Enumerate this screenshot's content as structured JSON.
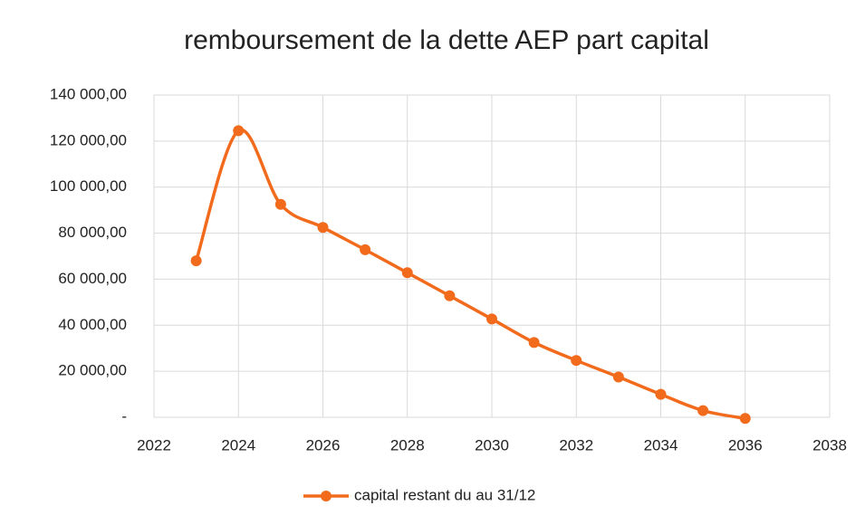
{
  "chart_data": {
    "type": "line",
    "title": "remboursement de la dette AEP part capital",
    "x": [
      2023,
      2024,
      2025,
      2026,
      2027,
      2028,
      2029,
      2030,
      2031,
      2032,
      2033,
      2034,
      2035,
      2036
    ],
    "series": [
      {
        "name": "capital restant du au 31/12",
        "color": "#f26b1d",
        "values": [
          68000,
          124500,
          92500,
          82500,
          72800,
          62800,
          52800,
          42700,
          32500,
          24700,
          17500,
          10000,
          2900,
          -500
        ]
      }
    ],
    "xlim": [
      2022,
      2038
    ],
    "xticks": [
      2022,
      2024,
      2026,
      2028,
      2030,
      2032,
      2034,
      2036,
      2038
    ],
    "ylim": [
      0,
      140000
    ],
    "yticks": [
      {
        "value": 0,
        "label": "-"
      },
      {
        "value": 20000,
        "label": "20 000,00"
      },
      {
        "value": 40000,
        "label": "40 000,00"
      },
      {
        "value": 60000,
        "label": "60 000,00"
      },
      {
        "value": 80000,
        "label": "80 000,00"
      },
      {
        "value": 100000,
        "label": "100 000,00"
      },
      {
        "value": 120000,
        "label": "120 000,00"
      },
      {
        "value": 140000,
        "label": "140 000,00"
      }
    ],
    "grid": true,
    "smooth": true,
    "legend": "bottom"
  }
}
